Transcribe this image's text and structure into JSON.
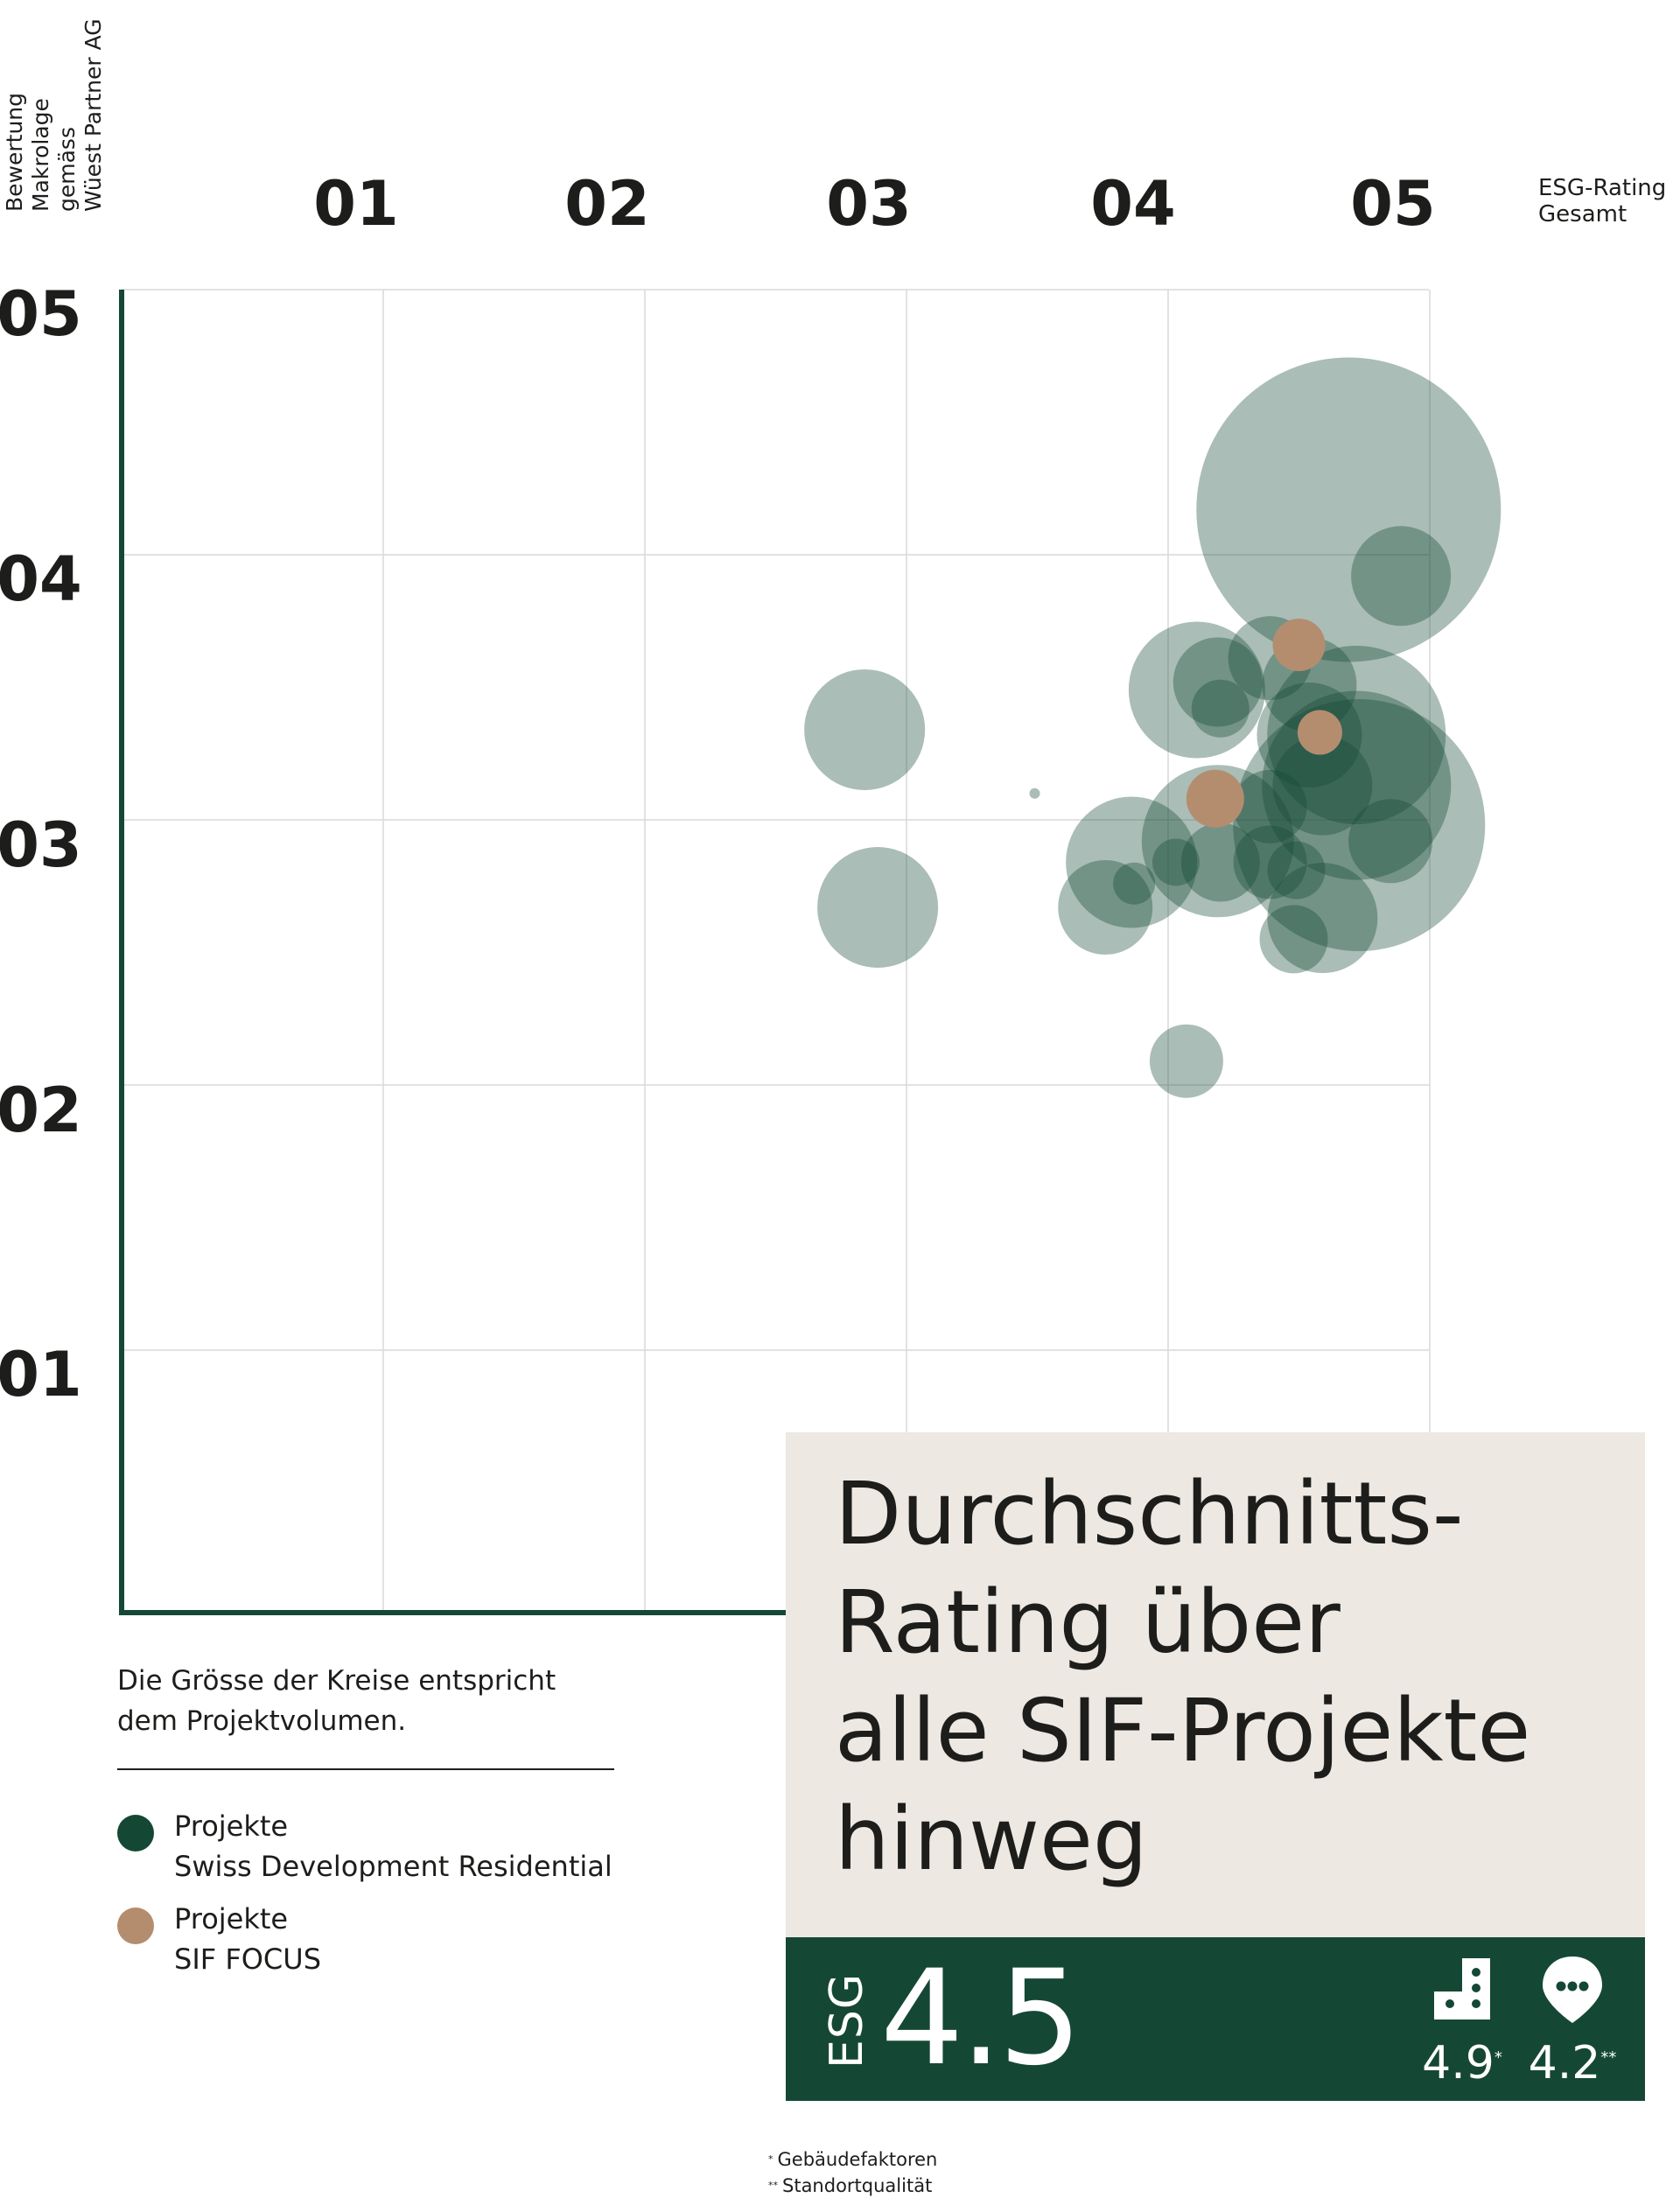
{
  "chart_data": {
    "type": "scatter",
    "subtype": "bubble",
    "y_axis_title_lines": [
      "Bewertung",
      "Makrolage",
      "gemäss",
      "Wüest Partner AG"
    ],
    "x_axis_title_lines": [
      "ESG-Rating",
      "Gesamt"
    ],
    "x_ticks": [
      "01",
      "02",
      "03",
      "04",
      "05"
    ],
    "y_ticks": [
      "05",
      "04",
      "03",
      "02",
      "01"
    ],
    "xlim": [
      0,
      5
    ],
    "ylim": [
      0,
      5
    ],
    "grid": true,
    "colors": {
      "sdr": "#144835",
      "sif": "#b48d6f",
      "grid": "#d9d9d9",
      "axis": "#144835"
    },
    "series": [
      {
        "name": "Projekte Swiss Development Residential",
        "color": "#144835",
        "points": [
          {
            "x": 4.69,
            "y": 4.17,
            "size": 58
          },
          {
            "x": 4.89,
            "y": 3.92,
            "size": 19
          },
          {
            "x": 2.84,
            "y": 3.34,
            "size": 23
          },
          {
            "x": 2.89,
            "y": 2.67,
            "size": 23
          },
          {
            "x": 4.11,
            "y": 3.49,
            "size": 26
          },
          {
            "x": 4.19,
            "y": 3.52,
            "size": 17
          },
          {
            "x": 4.2,
            "y": 3.42,
            "size": 11
          },
          {
            "x": 4.39,
            "y": 3.61,
            "size": 16
          },
          {
            "x": 4.54,
            "y": 3.51,
            "size": 18
          },
          {
            "x": 4.54,
            "y": 3.32,
            "size": 20
          },
          {
            "x": 4.72,
            "y": 3.32,
            "size": 34
          },
          {
            "x": 4.72,
            "y": 3.13,
            "size": 36
          },
          {
            "x": 4.73,
            "y": 2.98,
            "size": 48
          },
          {
            "x": 4.59,
            "y": 3.13,
            "size": 19
          },
          {
            "x": 4.39,
            "y": 3.05,
            "size": 14
          },
          {
            "x": 4.19,
            "y": 2.92,
            "size": 29
          },
          {
            "x": 4.2,
            "y": 2.84,
            "size": 15
          },
          {
            "x": 4.03,
            "y": 2.84,
            "size": 9
          },
          {
            "x": 3.86,
            "y": 2.84,
            "size": 25
          },
          {
            "x": 3.76,
            "y": 2.67,
            "size": 18
          },
          {
            "x": 3.87,
            "y": 2.76,
            "size": 8
          },
          {
            "x": 4.39,
            "y": 2.84,
            "size": 14
          },
          {
            "x": 4.49,
            "y": 2.81,
            "size": 11
          },
          {
            "x": 4.59,
            "y": 2.63,
            "size": 21
          },
          {
            "x": 4.85,
            "y": 2.92,
            "size": 16
          },
          {
            "x": 4.48,
            "y": 2.55,
            "size": 13
          },
          {
            "x": 4.07,
            "y": 2.09,
            "size": 14
          },
          {
            "x": 3.49,
            "y": 3.1,
            "size": 2
          }
        ]
      },
      {
        "name": "Projekte SIF FOCUS",
        "color": "#b48d6f",
        "points": [
          {
            "x": 4.5,
            "y": 3.66,
            "size": 10
          },
          {
            "x": 4.58,
            "y": 3.33,
            "size": 8.5
          },
          {
            "x": 4.18,
            "y": 3.08,
            "size": 11
          }
        ]
      }
    ]
  },
  "note_lines": [
    "Die Grösse der Kreise entspricht",
    "dem Projektvolumen."
  ],
  "legend": [
    {
      "line1": "Projekte",
      "line2": "Swiss Development Residential",
      "color": "#144835"
    },
    {
      "line1": "Projekte",
      "line2": "SIF FOCUS",
      "color": "#b48d6f"
    }
  ],
  "summary": {
    "title_lines": [
      "Durchschnitts-",
      "Rating über",
      "alle SIF-Projekte",
      "hinweg"
    ],
    "esg_label": "ESG",
    "esg_value": "4.5",
    "building_icon": "building-icon",
    "building_value": "4.9",
    "building_mark": "*",
    "location_icon": "location-pin-icon",
    "location_value": "4.2",
    "location_mark": "**",
    "panel_bg": "#ede8e1",
    "bar_bg": "#144835"
  },
  "footnotes": [
    {
      "mark": "*",
      "text": "Gebäudefaktoren"
    },
    {
      "mark": "**",
      "text": "Standortqualität"
    }
  ]
}
